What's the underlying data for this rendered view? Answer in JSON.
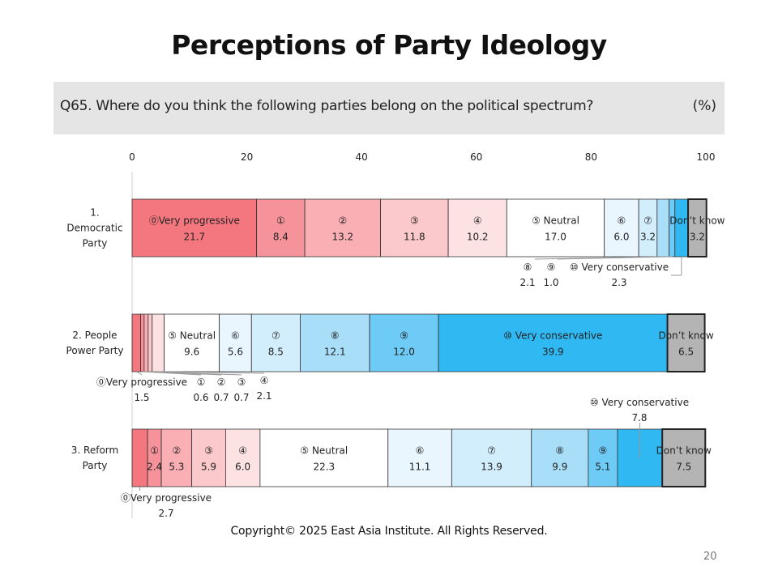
{
  "page": {
    "title": "Perceptions of Party Ideology",
    "question": "Q65. Where do you think the following parties belong on the political spectrum?",
    "unit": "(%)",
    "copyright": "Copyright© 2025 East Asia Institute. All Rights Reserved.",
    "page_number": "20"
  },
  "chart_data": {
    "type": "bar",
    "orientation": "horizontal",
    "stacked": true,
    "xlim": [
      0,
      100
    ],
    "xticks": [
      "0",
      "20",
      "40",
      "60",
      "80",
      "100"
    ],
    "categories": [
      [
        "1.",
        "Democratic",
        "Party"
      ],
      [
        "2. People",
        "Power Party"
      ],
      [
        "3. Reform",
        "Party"
      ]
    ],
    "series": [
      {
        "name": "⓪Very progressive",
        "color": "#f4767e",
        "values": [
          21.7,
          1.5,
          2.7
        ]
      },
      {
        "name": "①",
        "color": "#f6939a",
        "values": [
          8.4,
          0.6,
          2.4
        ]
      },
      {
        "name": "②",
        "color": "#f9afb4",
        "values": [
          13.2,
          0.7,
          5.3
        ]
      },
      {
        "name": "③",
        "color": "#fbc8cb",
        "values": [
          11.8,
          0.7,
          5.9
        ]
      },
      {
        "name": "④",
        "color": "#fde2e4",
        "values": [
          10.2,
          2.1,
          6.0
        ]
      },
      {
        "name": "⑤ Neutral",
        "color": "#ffffff",
        "values": [
          17.0,
          9.6,
          22.3
        ]
      },
      {
        "name": "⑥",
        "color": "#eaf6fd",
        "values": [
          6.0,
          5.6,
          11.1
        ]
      },
      {
        "name": "⑦",
        "color": "#d2edfc",
        "values": [
          3.2,
          8.5,
          13.9
        ]
      },
      {
        "name": "⑧",
        "color": "#a9def9",
        "values": [
          2.1,
          12.1,
          9.9
        ]
      },
      {
        "name": "⑨",
        "color": "#6ecbf6",
        "values": [
          1.0,
          12.0,
          5.1
        ]
      },
      {
        "name": "⑩ Very conservative",
        "color": "#2fb8f1",
        "values": [
          2.3,
          39.9,
          7.8
        ]
      },
      {
        "name": "Don't know",
        "color": "#b4b4b4",
        "values": [
          3.2,
          6.5,
          7.5
        ]
      }
    ],
    "displayed_values": [
      [
        "21.7",
        "8.4",
        "13.2",
        "11.8",
        "10.2",
        "17.0",
        "6.0",
        "3.2",
        "2.1",
        "1.0",
        "2.3",
        "3.2"
      ],
      [
        "1.5",
        "0.6",
        "0.7",
        "0.7",
        "2.1",
        "9.6",
        "5.6",
        "8.5",
        "12.1",
        "12.0",
        "39.9",
        "6.5"
      ],
      [
        "2.7",
        "2.4",
        "5.3",
        "5.9",
        "6.0",
        "22.3",
        "11.1",
        "13.9",
        "9.9",
        "5.1",
        "7.8",
        "7.5"
      ]
    ],
    "segment_labels": [
      "⓪Very progressive",
      "①",
      "②",
      "③",
      "④",
      "⑤ Neutral",
      "⑥",
      "⑦",
      "⑧",
      "⑨",
      "⑩ Very conservative",
      "Don’t know"
    ],
    "legend": "none"
  }
}
